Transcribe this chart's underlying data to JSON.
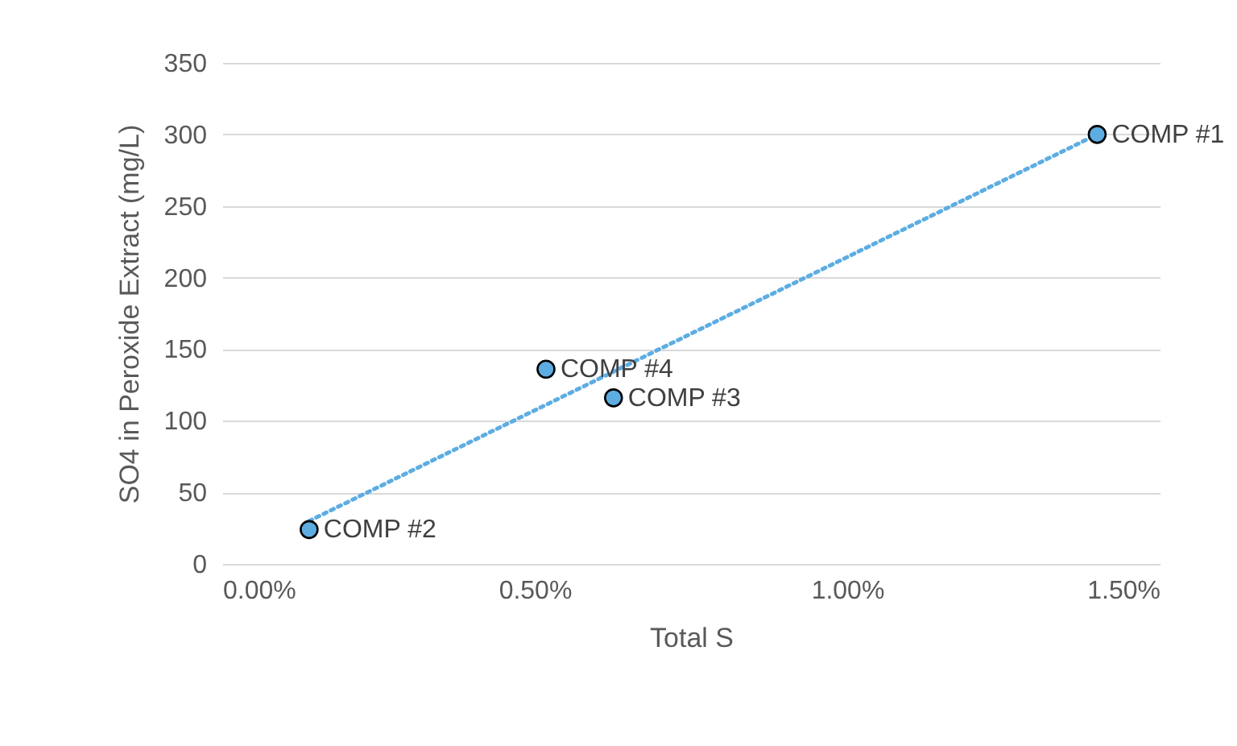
{
  "chart_data": {
    "type": "scatter",
    "xlabel": "Total S",
    "ylabel": "SO4 in Peroxide Extract (mg/L)",
    "xlim": [
      0,
      1.5
    ],
    "xticks": [
      {
        "value": 0,
        "label": "0.00%"
      },
      {
        "value": 0.5,
        "label": "0.50%"
      },
      {
        "value": 1,
        "label": "1.00%"
      },
      {
        "value": 1.5,
        "label": "1.50%"
      }
    ],
    "ylim": [
      0,
      350
    ],
    "yticks": [
      0,
      50,
      100,
      150,
      200,
      250,
      300,
      350
    ],
    "grid": "y",
    "series": [
      {
        "marker": "circle",
        "color": "#5dade2",
        "x": [
          1.4,
          0.139,
          0.626,
          0.518
        ],
        "values": [
          300,
          24,
          116,
          136
        ]
      },
      {
        "type": "line",
        "color": "#5dade2",
        "line_style": "dotted",
        "x": [
          0.139,
          1.4
        ],
        "values": [
          30,
          300
        ]
      }
    ],
    "annotations": [
      {
        "text": "COMP #1",
        "x": 1.4,
        "y": 300
      },
      {
        "text": "COMP #2",
        "x": 0.139,
        "y": 24
      },
      {
        "text": "COMP #3",
        "x": 0.626,
        "y": 116
      },
      {
        "text": "COMP #4",
        "x": 0.518,
        "y": 136
      }
    ]
  }
}
